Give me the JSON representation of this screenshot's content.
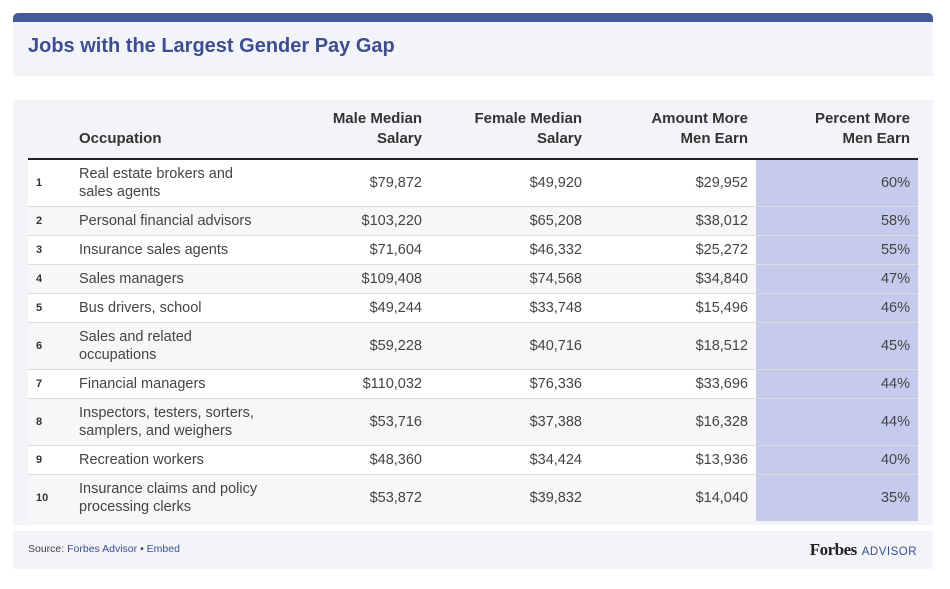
{
  "header": {
    "title": "Jobs with the Largest Gender Pay Gap"
  },
  "columns": {
    "occupation": "Occupation",
    "male_l1": "Male Median",
    "male_l2": "Salary",
    "female_l1": "Female Median",
    "female_l2": "Salary",
    "amount_l1": "Amount More",
    "amount_l2": "Men Earn",
    "percent_l1": "Percent More",
    "percent_l2": "Men Earn"
  },
  "rows": [
    {
      "rank": "1",
      "occ1": "Real estate brokers and",
      "occ2": "sales agents",
      "male": "$79,872",
      "female": "$49,920",
      "amount": "$29,952",
      "percent": "60%"
    },
    {
      "rank": "2",
      "occ1": "Personal financial advisors",
      "occ2": "",
      "male": "$103,220",
      "female": "$65,208",
      "amount": "$38,012",
      "percent": "58%"
    },
    {
      "rank": "3",
      "occ1": "Insurance sales agents",
      "occ2": "",
      "male": "$71,604",
      "female": "$46,332",
      "amount": "$25,272",
      "percent": "55%"
    },
    {
      "rank": "4",
      "occ1": "Sales managers",
      "occ2": "",
      "male": "$109,408",
      "female": "$74,568",
      "amount": "$34,840",
      "percent": "47%"
    },
    {
      "rank": "5",
      "occ1": "Bus drivers, school",
      "occ2": "",
      "male": "$49,244",
      "female": "$33,748",
      "amount": "$15,496",
      "percent": "46%"
    },
    {
      "rank": "6",
      "occ1": "Sales and related",
      "occ2": "occupations",
      "male": "$59,228",
      "female": "$40,716",
      "amount": "$18,512",
      "percent": "45%"
    },
    {
      "rank": "7",
      "occ1": "Financial managers",
      "occ2": "",
      "male": "$110,032",
      "female": "$76,336",
      "amount": "$33,696",
      "percent": "44%"
    },
    {
      "rank": "8",
      "occ1": "Inspectors, testers, sorters,",
      "occ2": "samplers, and weighers",
      "male": "$53,716",
      "female": "$37,388",
      "amount": "$16,328",
      "percent": "44%"
    },
    {
      "rank": "9",
      "occ1": "Recreation workers",
      "occ2": "",
      "male": "$48,360",
      "female": "$34,424",
      "amount": "$13,936",
      "percent": "40%"
    },
    {
      "rank": "10",
      "occ1": "Insurance claims and policy",
      "occ2": "processing clerks",
      "male": "$53,872",
      "female": "$39,832",
      "amount": "$14,040",
      "percent": "35%"
    }
  ],
  "footer": {
    "source_prefix": "Source:",
    "source_name": "Forbes Advisor",
    "separator": "•",
    "embed": "Embed",
    "brand_name": "Forbes",
    "brand_sub": "ADVISOR"
  },
  "colors": {
    "accent": "#3c4e91",
    "top_bar": "#46599a",
    "highlight_column": "#c5cbec",
    "panel_bg": "#f3f4f8"
  },
  "chart_data": {
    "type": "table",
    "title": "Jobs with the Largest Gender Pay Gap",
    "columns": [
      "",
      "Occupation",
      "Male Median Salary",
      "Female Median Salary",
      "Amount More Men Earn",
      "Percent More Men Earn"
    ],
    "rows": [
      [
        1,
        "Real estate brokers and sales agents",
        79872,
        49920,
        29952,
        60
      ],
      [
        2,
        "Personal financial advisors",
        103220,
        65208,
        38012,
        58
      ],
      [
        3,
        "Insurance sales agents",
        71604,
        46332,
        25272,
        55
      ],
      [
        4,
        "Sales managers",
        109408,
        74568,
        34840,
        47
      ],
      [
        5,
        "Bus drivers, school",
        49244,
        33748,
        15496,
        46
      ],
      [
        6,
        "Sales and related occupations",
        59228,
        40716,
        18512,
        45
      ],
      [
        7,
        "Financial managers",
        110032,
        76336,
        33696,
        44
      ],
      [
        8,
        "Inspectors, testers, sorters, samplers, and weighers",
        53716,
        37388,
        16328,
        44
      ],
      [
        9,
        "Recreation workers",
        48360,
        34424,
        13936,
        40
      ],
      [
        10,
        "Insurance claims and policy processing clerks",
        53872,
        39832,
        14040,
        35
      ]
    ]
  }
}
